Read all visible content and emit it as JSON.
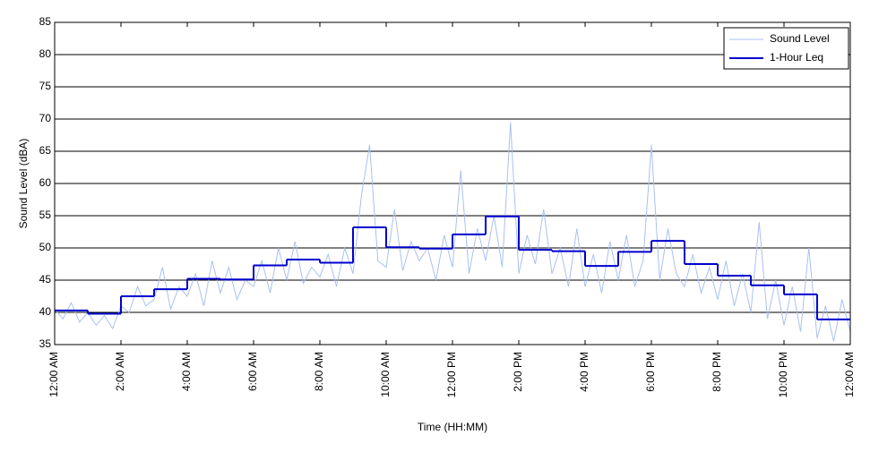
{
  "chart_data": {
    "type": "line",
    "xlabel": "Time (HH:MM)",
    "ylabel": "Sound Level (dBA)",
    "xlim": [
      0,
      24
    ],
    "xticks": [
      {
        "value": 0,
        "label": "12:00 AM"
      },
      {
        "value": 2,
        "label": "2:00 AM"
      },
      {
        "value": 4,
        "label": "4:00 AM"
      },
      {
        "value": 6,
        "label": "6:00 AM"
      },
      {
        "value": 8,
        "label": "8:00 AM"
      },
      {
        "value": 10,
        "label": "10:00 AM"
      },
      {
        "value": 12,
        "label": "12:00 PM"
      },
      {
        "value": 14,
        "label": "2:00 PM"
      },
      {
        "value": 16,
        "label": "4:00 PM"
      },
      {
        "value": 18,
        "label": "6:00 PM"
      },
      {
        "value": 20,
        "label": "8:00 PM"
      },
      {
        "value": 22,
        "label": "10:00 PM"
      },
      {
        "value": 24,
        "label": "12:00 AM"
      }
    ],
    "ylim": [
      35,
      85
    ],
    "yticks": [
      35,
      40,
      45,
      50,
      55,
      60,
      65,
      70,
      75,
      80,
      85
    ],
    "grid": true,
    "legend": "upper right",
    "series": [
      {
        "name": "Sound Level",
        "color": "#a9c1f2",
        "step": false,
        "x": [
          0,
          0.25,
          0.5,
          0.75,
          1,
          1.25,
          1.5,
          1.75,
          2,
          2.25,
          2.5,
          2.75,
          3,
          3.25,
          3.5,
          3.75,
          4,
          4.25,
          4.5,
          4.75,
          5,
          5.25,
          5.5,
          5.75,
          6,
          6.25,
          6.5,
          6.75,
          7,
          7.25,
          7.5,
          7.75,
          8,
          8.25,
          8.5,
          8.75,
          9,
          9.25,
          9.5,
          9.75,
          10,
          10.25,
          10.5,
          10.75,
          11,
          11.25,
          11.5,
          11.75,
          12,
          12.25,
          12.5,
          12.75,
          13,
          13.25,
          13.5,
          13.75,
          14,
          14.25,
          14.5,
          14.75,
          15,
          15.25,
          15.5,
          15.75,
          16,
          16.25,
          16.5,
          16.75,
          17,
          17.25,
          17.5,
          17.75,
          18,
          18.25,
          18.5,
          18.75,
          19,
          19.25,
          19.5,
          19.75,
          20,
          20.25,
          20.5,
          20.75,
          21,
          21.25,
          21.5,
          21.75,
          22,
          22.25,
          22.5,
          22.75,
          23,
          23.25,
          23.5,
          23.75,
          24
        ],
        "values": [
          40.5,
          39,
          41.5,
          38.5,
          40,
          38,
          39.5,
          37.5,
          41,
          40,
          44,
          41,
          42,
          47,
          40.5,
          44,
          42.5,
          46,
          41,
          48,
          43,
          47,
          42,
          45,
          44,
          48,
          43,
          50,
          45,
          51,
          44.5,
          47,
          45.5,
          49,
          44,
          50,
          46,
          58,
          66,
          48,
          47,
          56,
          46.5,
          51,
          48,
          50,
          45,
          52,
          47,
          62,
          46,
          53,
          48,
          55,
          47,
          69.5,
          46,
          52,
          47.5,
          56,
          46,
          50,
          44,
          53,
          44,
          49,
          43,
          51,
          45,
          52,
          44,
          48,
          66,
          45,
          53,
          46,
          44,
          49,
          43,
          47,
          42,
          48,
          41,
          46,
          40,
          54,
          39,
          45,
          38,
          44,
          37,
          50,
          36,
          41,
          35.5,
          42,
          37
        ]
      },
      {
        "name": "1-Hour Leq",
        "color": "#0000cc",
        "step": true,
        "x": [
          0,
          1,
          2,
          3,
          4,
          5,
          6,
          7,
          8,
          9,
          10,
          11,
          12,
          13,
          14,
          15,
          16,
          17,
          18,
          19,
          20,
          21,
          22,
          23
        ],
        "values": [
          40.3,
          39.8,
          42.5,
          43.6,
          45.2,
          45.1,
          47.3,
          48.2,
          47.7,
          53.2,
          50.1,
          49.9,
          52.1,
          54.9,
          49.7,
          49.5,
          47.2,
          49.4,
          51.1,
          47.5,
          45.7,
          44.2,
          42.8,
          38.9
        ]
      }
    ]
  }
}
